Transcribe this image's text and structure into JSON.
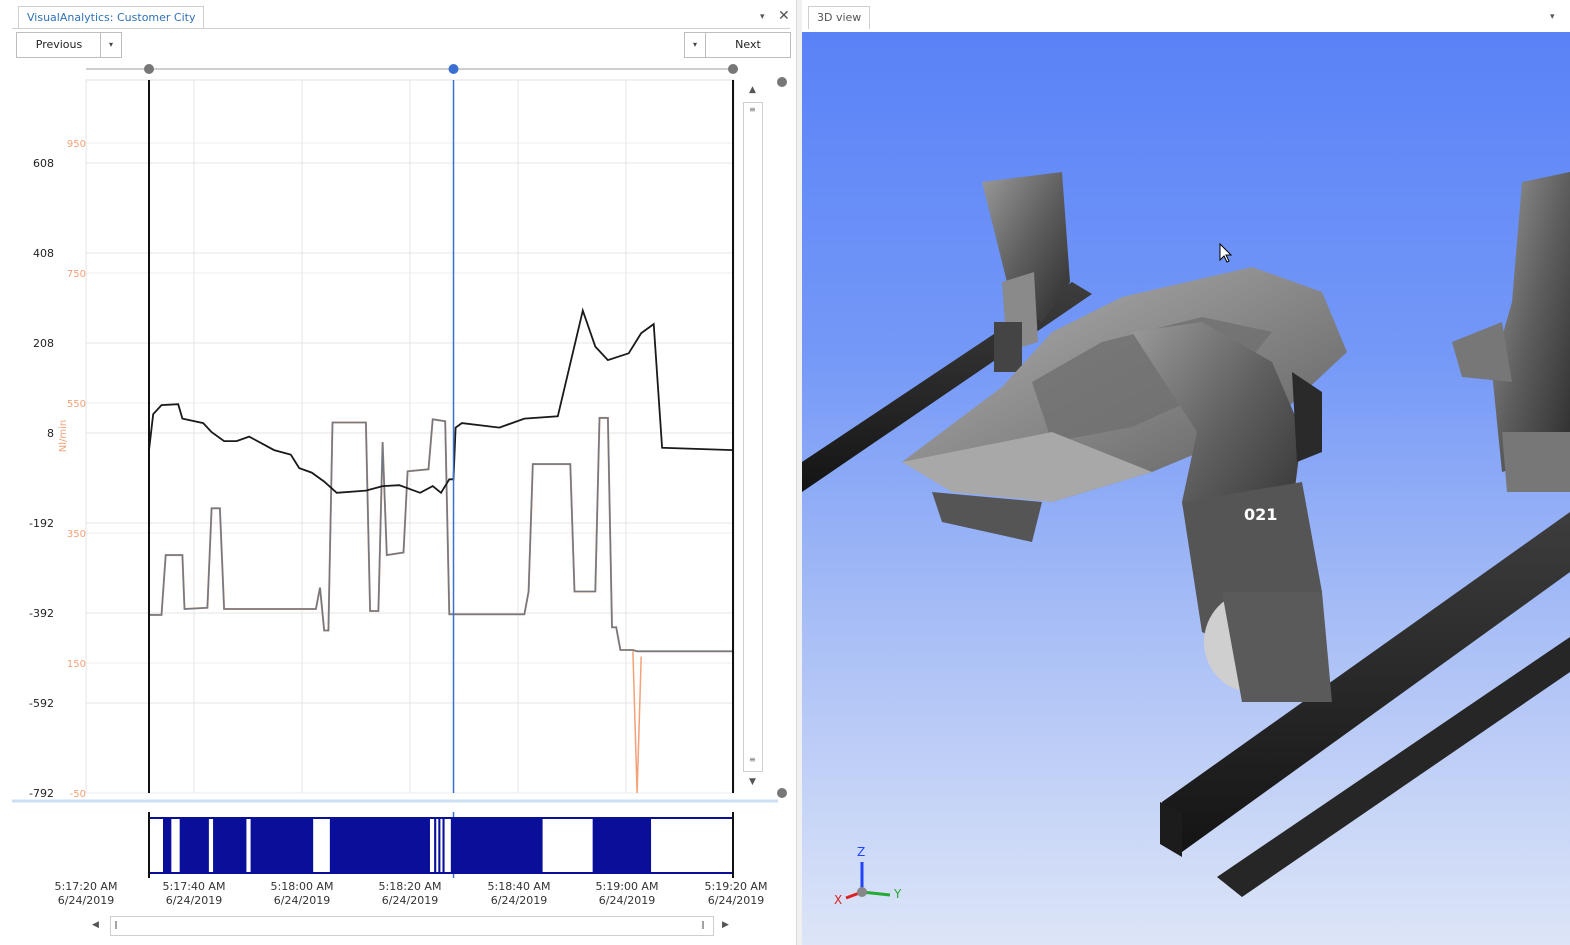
{
  "left_panel": {
    "tab_title": "VisualAnalytics:  Customer City",
    "prev_label": "Previous",
    "next_label": "Next",
    "close_symbol": "✕",
    "menu_symbol": "▾"
  },
  "right_panel": {
    "tab_title": "3D view",
    "robot_label": "021",
    "axis_labels": {
      "z": "Z",
      "y": "Y",
      "x": "X"
    }
  },
  "icons": [
    "chevron-down-icon",
    "close-icon",
    "scroll-up-icon",
    "scroll-down-icon",
    "scroll-left-icon",
    "scroll-right-icon",
    "cursor-icon",
    "axis-triad-icon"
  ],
  "colors": {
    "cursor_line": "#3a6fd1",
    "series_black": "#1a1a1a",
    "series_gray": "#6e7a85",
    "series_orange": "#f2a178",
    "timeline_bar": "#0a0f9a",
    "secondary_axis_text": "#f2a178"
  },
  "chart_data": {
    "type": "line",
    "x_axis_ticks": [
      {
        "time": "5:17:20 AM",
        "date": "6/24/2019"
      },
      {
        "time": "5:17:40 AM",
        "date": "6/24/2019"
      },
      {
        "time": "5:18:00 AM",
        "date": "6/24/2019"
      },
      {
        "time": "5:18:20 AM",
        "date": "6/24/2019"
      },
      {
        "time": "5:18:40 AM",
        "date": "6/24/2019"
      },
      {
        "time": "5:19:00 AM",
        "date": "6/24/2019"
      },
      {
        "time": "5:19:20 AM",
        "date": "6/24/2019"
      }
    ],
    "y_left_ticks": [
      608,
      408,
      208,
      8,
      -192,
      -392,
      -592,
      -792
    ],
    "y_right_ticks": [
      950,
      750,
      550,
      350,
      150,
      -50
    ],
    "y_right_label": "Nl/min",
    "cursor_time_s": 73,
    "series": [
      {
        "axis": "left",
        "points": [
          [
            0,
            -30
          ],
          [
            1,
            50
          ],
          [
            3,
            70
          ],
          [
            7,
            72
          ],
          [
            8,
            40
          ],
          [
            13,
            30
          ],
          [
            15,
            10
          ],
          [
            18,
            -10
          ],
          [
            21,
            -10
          ],
          [
            24,
            0
          ],
          [
            30,
            -30
          ],
          [
            34,
            -40
          ],
          [
            36,
            -70
          ],
          [
            39,
            -80
          ],
          [
            42,
            -100
          ],
          [
            45,
            -125
          ],
          [
            52,
            -120
          ],
          [
            56,
            -110
          ],
          [
            60,
            -108
          ],
          [
            65,
            -125
          ],
          [
            68,
            -110
          ],
          [
            70,
            -125
          ],
          [
            72,
            -95
          ],
          [
            73,
            -95
          ],
          [
            73.5,
            20
          ],
          [
            75,
            30
          ],
          [
            84,
            20
          ],
          [
            90,
            40
          ],
          [
            98,
            45
          ],
          [
            104,
            280
          ],
          [
            107,
            200
          ],
          [
            110,
            170
          ],
          [
            115,
            185
          ],
          [
            118,
            230
          ],
          [
            121,
            250
          ],
          [
            123,
            -25
          ],
          [
            140,
            -30
          ]
        ]
      },
      {
        "axis": "right",
        "points": [
          [
            0,
            224
          ],
          [
            3,
            224
          ],
          [
            4,
            316
          ],
          [
            8,
            316
          ],
          [
            8.5,
            233
          ],
          [
            14,
            235
          ],
          [
            15,
            388
          ],
          [
            17,
            388
          ],
          [
            18,
            233
          ],
          [
            40,
            233
          ],
          [
            41,
            266
          ],
          [
            42,
            200
          ],
          [
            43,
            200
          ],
          [
            44,
            520
          ],
          [
            52,
            520
          ],
          [
            53,
            230
          ],
          [
            55,
            230
          ],
          [
            56,
            490
          ],
          [
            57,
            316
          ],
          [
            61,
            320
          ],
          [
            62,
            445
          ],
          [
            67,
            448
          ],
          [
            68,
            525
          ],
          [
            71,
            522
          ],
          [
            72,
            225
          ],
          [
            73,
            225
          ],
          [
            90,
            225
          ],
          [
            91,
            260
          ],
          [
            92,
            456
          ],
          [
            101,
            456
          ],
          [
            102,
            260
          ],
          [
            107,
            260
          ],
          [
            108,
            527
          ],
          [
            110,
            527
          ],
          [
            111,
            205
          ],
          [
            112,
            205
          ],
          [
            113,
            170
          ],
          [
            116,
            170
          ],
          [
            117,
            168
          ],
          [
            140,
            168
          ]
        ]
      },
      {
        "axis": "right",
        "points": [
          [
            116,
            168
          ],
          [
            117,
            -50
          ],
          [
            118,
            160
          ]
        ]
      }
    ],
    "timeline_segments": [
      [
        0,
        2
      ],
      [
        4,
        11
      ],
      [
        12,
        20
      ],
      [
        21,
        36
      ],
      [
        40,
        64
      ],
      [
        65,
        65.5
      ],
      [
        66,
        66.5
      ],
      [
        67,
        67.5
      ],
      [
        69,
        91
      ],
      [
        103,
        117
      ]
    ]
  }
}
